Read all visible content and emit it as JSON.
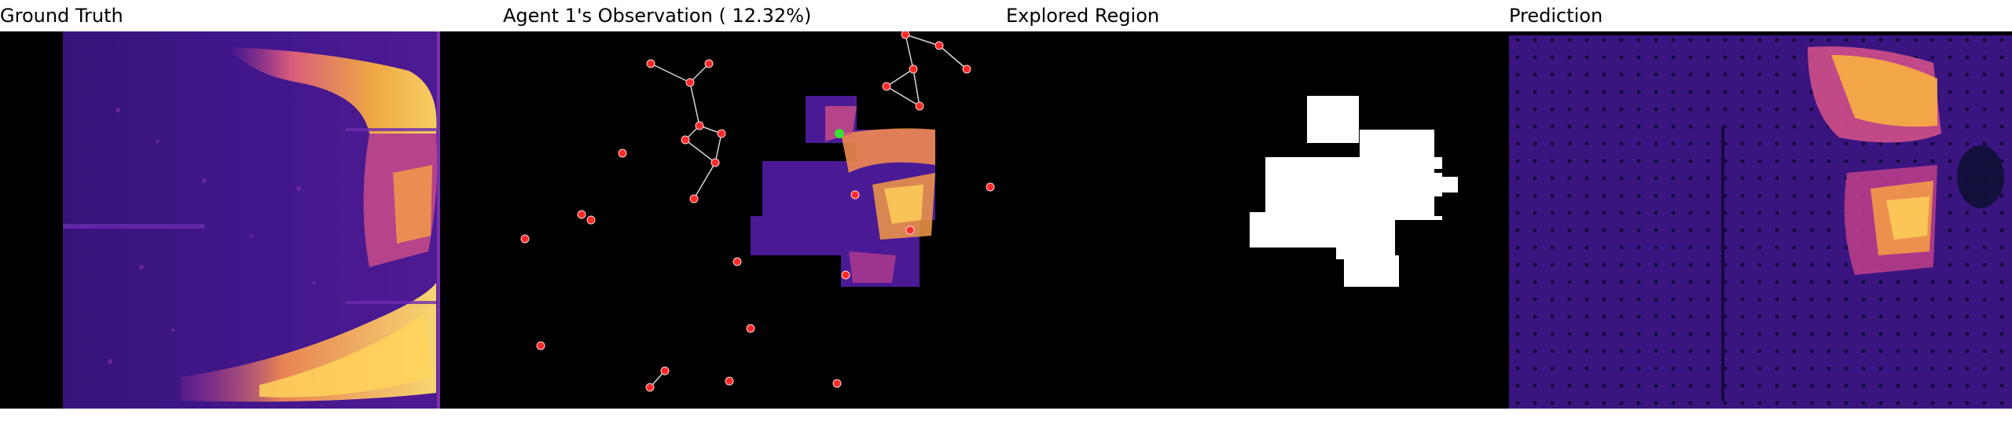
{
  "panels": {
    "ground_truth": {
      "title": "Ground Truth"
    },
    "observation": {
      "title": "Agent 1's Observation ( 12.32%)"
    },
    "explored": {
      "title": "Explored Region"
    },
    "prediction": {
      "title": "Prediction"
    }
  },
  "colors": {
    "background": "#000000",
    "heat_low": "#2a0f6e",
    "heat_mid": "#8b1fa8",
    "heat_high": "#f5a623",
    "heat_peak": "#ffe066",
    "agent_marker": "#ff2a2a",
    "current_agent": "#38e038",
    "explored_mask": "#ffffff"
  }
}
